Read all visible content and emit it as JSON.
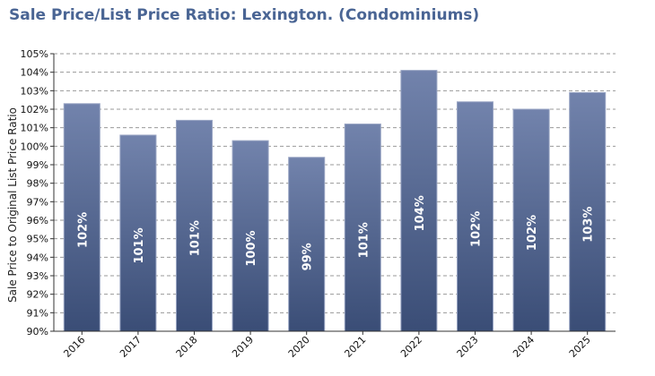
{
  "header": {
    "title": "Sale Price/List Price Ratio: Lexington. (Condominiums)"
  },
  "colors": {
    "bar_top": "#7283ac",
    "bar_bottom": "#3a4d76",
    "bar_edge": "#9aa6c4",
    "title": "#4a6594",
    "grid": "#999999"
  },
  "chart_data": {
    "type": "bar",
    "title": "Sale Price/List Price Ratio: Lexington. (Condominiums)",
    "xlabel": "",
    "ylabel": "Sale Price to Original List Price Ratio",
    "ylim": [
      90,
      105
    ],
    "yticks": [
      "90%",
      "91%",
      "92%",
      "93%",
      "94%",
      "95%",
      "96%",
      "97%",
      "98%",
      "99%",
      "100%",
      "101%",
      "102%",
      "103%",
      "104%",
      "105%"
    ],
    "grid": true,
    "categories": [
      "2016",
      "2017",
      "2018",
      "2019",
      "2020",
      "2021",
      "2022",
      "2023",
      "2024",
      "2025"
    ],
    "values": [
      102.3,
      100.6,
      101.4,
      100.3,
      99.4,
      101.2,
      104.1,
      102.4,
      102.0,
      102.9
    ],
    "data_labels": [
      "102%",
      "101%",
      "101%",
      "100%",
      "99%",
      "101%",
      "104%",
      "102%",
      "102%",
      "103%"
    ]
  }
}
